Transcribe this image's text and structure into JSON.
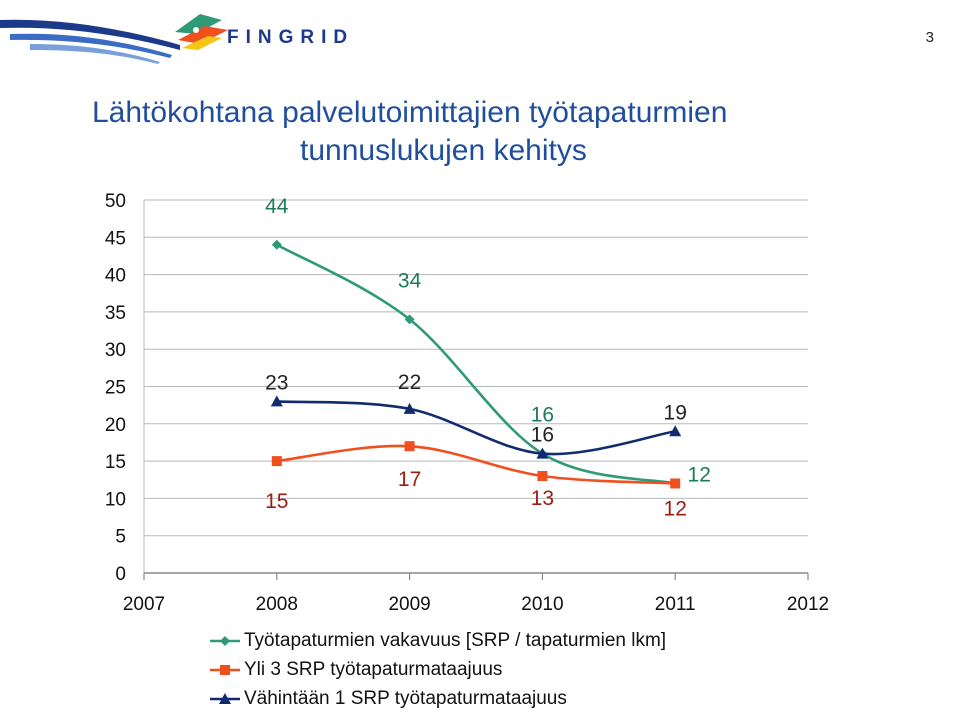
{
  "page_number": "3",
  "logo": {
    "text": "FINGRID"
  },
  "title": {
    "line1": "Lähtökohtana palvelutoimittajien työtapaturmien",
    "line2": "tunnuslukujen kehitys"
  },
  "colors": {
    "series1": "#2e9a78",
    "series2": "#f0501e",
    "series3": "#102b6e",
    "title": "#1f4e9c",
    "grid": "#b8b8b8"
  },
  "chart_data": {
    "type": "line",
    "x": [
      2008,
      2009,
      2010,
      2011
    ],
    "xticks": [
      "2007",
      "2008",
      "2009",
      "2010",
      "2011",
      "2012"
    ],
    "xlim": [
      2007,
      2012
    ],
    "ylim": [
      0,
      50
    ],
    "yticks": [
      "0",
      "5",
      "10",
      "15",
      "20",
      "25",
      "30",
      "35",
      "40",
      "45",
      "50"
    ],
    "grid": true,
    "legend_position": "bottom",
    "series": [
      {
        "name": "Työtapaturmien vakavuus [SRP / tapaturmien lkm]",
        "values": [
          44,
          34,
          16,
          12
        ],
        "labels": [
          "44",
          "34",
          "16",
          "12"
        ],
        "marker": "diamond",
        "color": "#2e9a78"
      },
      {
        "name": "Yli 3 SRP työtapaturmataajuus",
        "values": [
          15,
          17,
          13,
          12
        ],
        "labels": [
          "15",
          "17",
          "13",
          "12"
        ],
        "marker": "square",
        "color": "#f0501e"
      },
      {
        "name": "Vähintään 1 SRP työtapaturmataajuus",
        "values": [
          23,
          22,
          16,
          19
        ],
        "labels": [
          "23",
          "22",
          "16",
          "19"
        ],
        "marker": "triangle",
        "color": "#102b6e"
      }
    ]
  }
}
